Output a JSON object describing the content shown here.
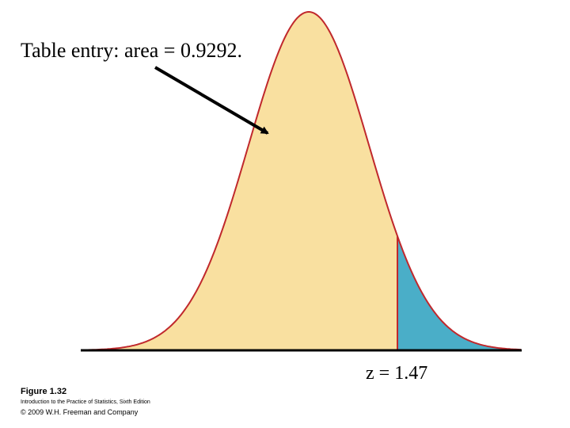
{
  "annotation": "Table entry: area = 0.9292.",
  "z_label": "z = 1.47",
  "footer": {
    "figure": "Figure 1.32",
    "book": "Introduction to the Practice of Statistics, Sixth Edition",
    "copyright": "© 2009 W.H. Freeman and Company"
  }
}
